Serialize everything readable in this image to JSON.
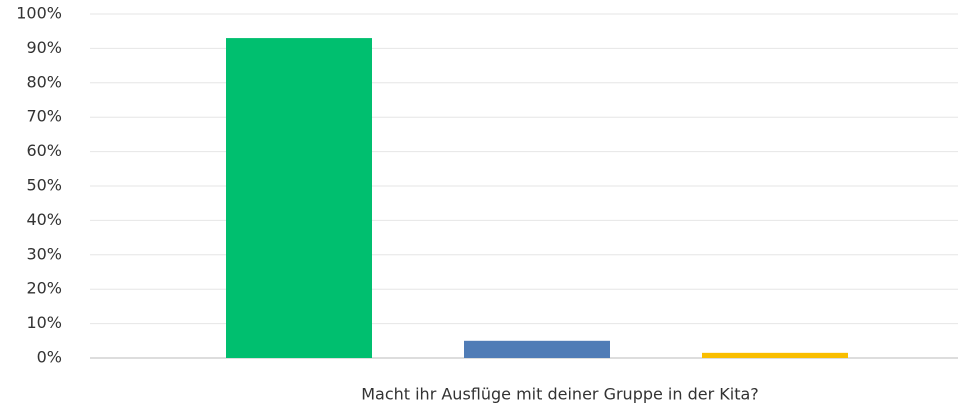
{
  "chart_data": {
    "type": "bar",
    "x_label": "Macht ihr Ausflüge mit deiner Gruppe in der Kita?",
    "categories": [
      null,
      null,
      null
    ],
    "values": [
      93,
      5,
      1.5
    ],
    "colors": [
      "#00bf6f",
      "#507cb6",
      "#f9be00"
    ],
    "ylim": [
      0,
      100
    ],
    "yticks": [
      {
        "value": 0,
        "label": "0%"
      },
      {
        "value": 10,
        "label": "10%"
      },
      {
        "value": 20,
        "label": "20%"
      },
      {
        "value": 30,
        "label": "30%"
      },
      {
        "value": 40,
        "label": "40%"
      },
      {
        "value": 50,
        "label": "50%"
      },
      {
        "value": 60,
        "label": "60%"
      },
      {
        "value": 70,
        "label": "70%"
      },
      {
        "value": 80,
        "label": "80%"
      },
      {
        "value": 90,
        "label": "90%"
      },
      {
        "value": 100,
        "label": "100%"
      }
    ],
    "grid": true
  }
}
